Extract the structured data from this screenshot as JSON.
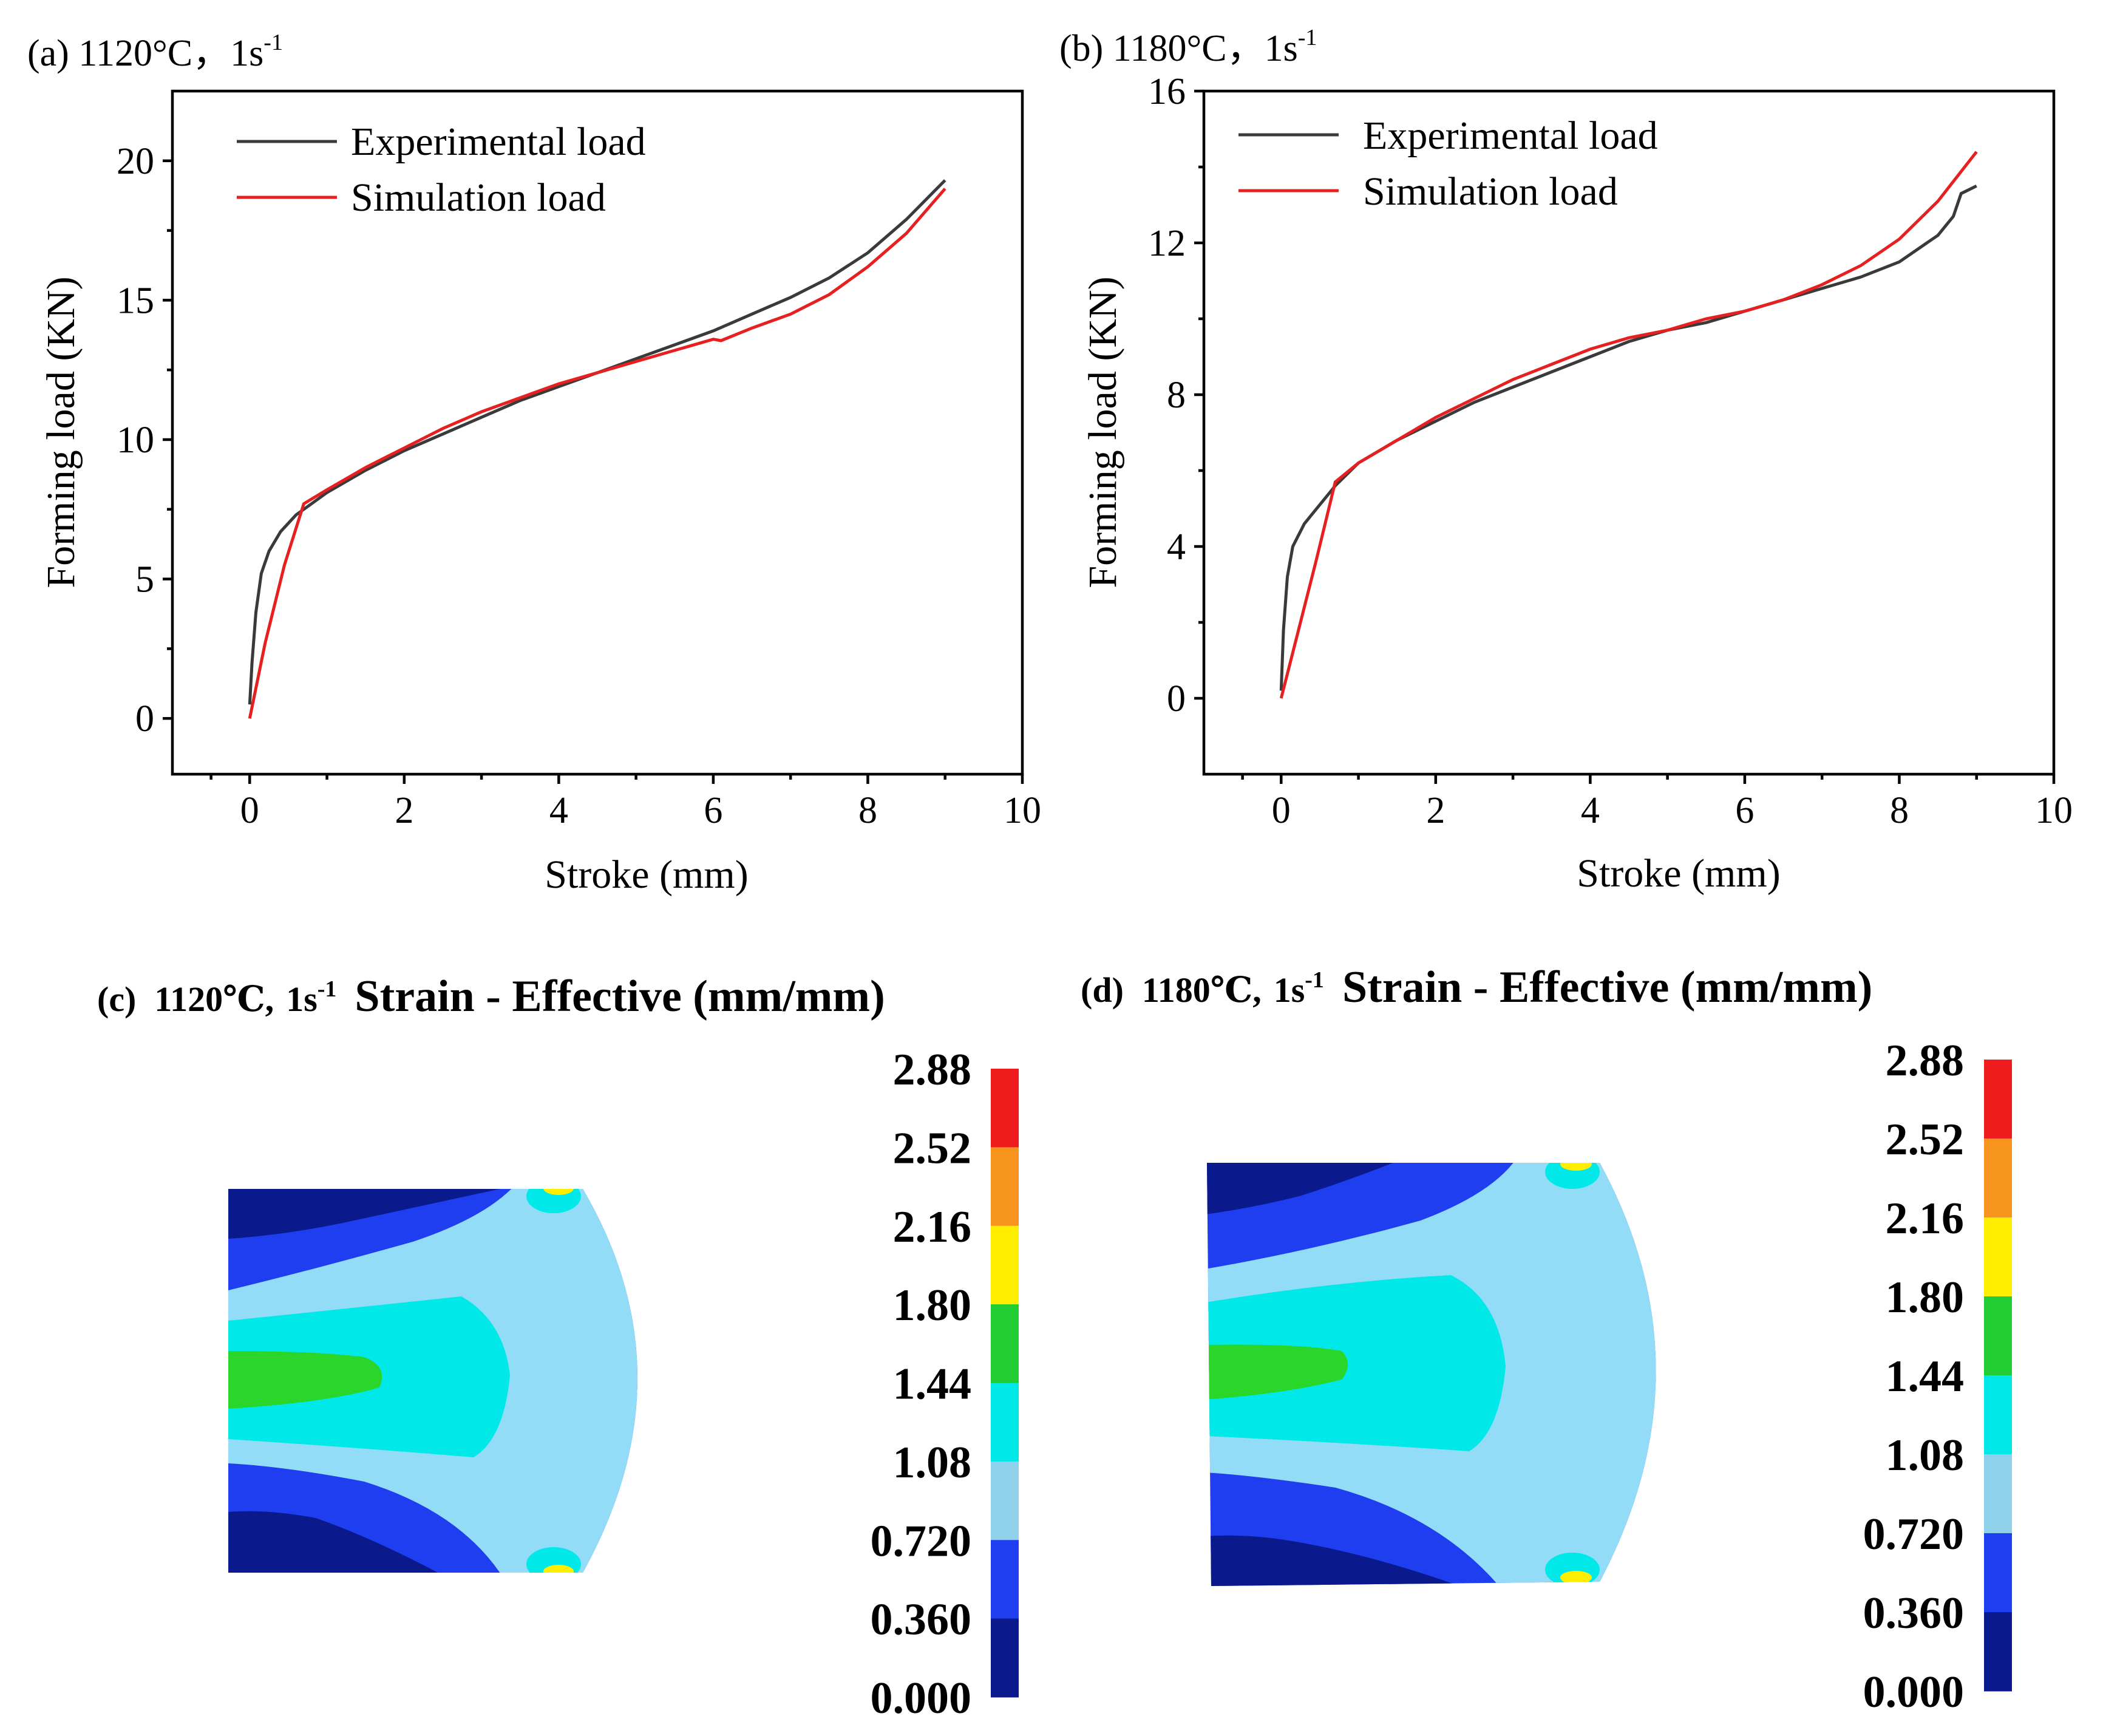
{
  "panels": [
    {
      "id": "a",
      "label": "(a) 1120°C，1s",
      "label_sup": "-1",
      "xlabel": "Stroke (mm)",
      "ylabel": "Forming load (KN)",
      "xlim": [
        -1,
        10
      ],
      "ylim": [
        -2,
        22.5
      ],
      "xticks": [
        0,
        2,
        4,
        6,
        8,
        10
      ],
      "yticks": [
        0,
        5,
        10,
        15,
        20
      ],
      "legend": [
        "Experimental load",
        "Simulation load"
      ]
    },
    {
      "id": "b",
      "label": "(b) 1180°C，1s",
      "label_sup": "-1",
      "xlabel": "Stroke (mm)",
      "ylabel": "Forming load (KN)",
      "xlim": [
        -1,
        10
      ],
      "ylim": [
        -2,
        16
      ],
      "xticks": [
        0,
        2,
        4,
        6,
        8,
        10
      ],
      "yticks": [
        0,
        4,
        8,
        12,
        16
      ],
      "legend": [
        "Experimental load",
        "Simulation load"
      ]
    }
  ],
  "contours": [
    {
      "id": "c",
      "prefix": "(c)",
      "condition": "1120℃,",
      "rate": "1s",
      "rate_sup": "-1",
      "title": "Strain - Effective (mm/mm)"
    },
    {
      "id": "d",
      "prefix": "(d)",
      "condition": "1180℃,",
      "rate": "1s",
      "rate_sup": "-1",
      "title": "Strain - Effective (mm/mm)"
    }
  ],
  "colorbar": {
    "labels": [
      "2.88",
      "2.52",
      "2.16",
      "1.80",
      "1.44",
      "1.08",
      "0.720",
      "0.360",
      "0.000"
    ],
    "colors": [
      "#ee1c1c",
      "#f7941d",
      "#ffee00",
      "#22cc33",
      "#00e8e8",
      "#8fd1ea",
      "#1f3ef0",
      "#0a1a8c"
    ]
  },
  "colors": {
    "experimental": "#3a3a3a",
    "simulation": "#e62020",
    "navy": "#0a1a8c",
    "blue": "#1f3ef0",
    "lightblue": "#93dcf7",
    "cyan": "#00e8e8",
    "green": "#2bd62b",
    "yellow": "#ffee00"
  },
  "chart_data": [
    {
      "type": "line",
      "title": "(a) 1120°C，1s-1",
      "xlabel": "Stroke (mm)",
      "ylabel": "Forming load (KN)",
      "xlim": [
        -1,
        10
      ],
      "ylim": [
        -2,
        22.5
      ],
      "series": [
        {
          "name": "Experimental load",
          "x": [
            0,
            0.03,
            0.08,
            0.15,
            0.25,
            0.4,
            0.6,
            0.8,
            1.0,
            1.5,
            2.0,
            2.5,
            3.0,
            3.5,
            4.0,
            4.5,
            5.0,
            5.5,
            6.0,
            6.5,
            7.0,
            7.5,
            8.0,
            8.5,
            9.0
          ],
          "y": [
            0.5,
            2.0,
            3.8,
            5.2,
            6.0,
            6.7,
            7.3,
            7.7,
            8.1,
            8.9,
            9.6,
            10.2,
            10.8,
            11.4,
            11.9,
            12.4,
            12.9,
            13.4,
            13.9,
            14.5,
            15.1,
            15.8,
            16.7,
            17.9,
            19.3
          ]
        },
        {
          "name": "Simulation load",
          "x": [
            0,
            0.2,
            0.45,
            0.7,
            1.0,
            1.5,
            2.0,
            2.5,
            3.0,
            3.5,
            4.0,
            4.5,
            5.0,
            5.5,
            6.0,
            6.1,
            6.5,
            7.0,
            7.5,
            8.0,
            8.5,
            9.0
          ],
          "y": [
            0,
            2.7,
            5.5,
            7.7,
            8.2,
            9.0,
            9.7,
            10.4,
            11.0,
            11.5,
            12.0,
            12.4,
            12.8,
            13.2,
            13.6,
            13.55,
            14.0,
            14.5,
            15.2,
            16.2,
            17.4,
            19.0
          ]
        }
      ]
    },
    {
      "type": "line",
      "title": "(b) 1180°C，1s-1",
      "xlabel": "Stroke (mm)",
      "ylabel": "Forming load (KN)",
      "xlim": [
        -1,
        10
      ],
      "ylim": [
        -2,
        16
      ],
      "series": [
        {
          "name": "Experimental load",
          "x": [
            0,
            0.03,
            0.08,
            0.15,
            0.3,
            0.5,
            0.7,
            1.0,
            1.5,
            2.0,
            2.5,
            3.0,
            3.5,
            4.0,
            4.5,
            5.0,
            5.5,
            6.0,
            6.5,
            7.0,
            7.5,
            8.0,
            8.5,
            8.7,
            8.8,
            9.0
          ],
          "y": [
            0.2,
            1.8,
            3.2,
            4.0,
            4.6,
            5.1,
            5.6,
            6.2,
            6.8,
            7.3,
            7.8,
            8.2,
            8.6,
            9.0,
            9.4,
            9.7,
            9.9,
            10.2,
            10.5,
            10.8,
            11.1,
            11.5,
            12.2,
            12.7,
            13.3,
            13.5
          ]
        },
        {
          "name": "Simulation load",
          "x": [
            0,
            0.2,
            0.45,
            0.7,
            1.0,
            1.5,
            2.0,
            2.5,
            3.0,
            3.5,
            4.0,
            4.5,
            5.0,
            5.5,
            6.0,
            6.5,
            7.0,
            7.5,
            8.0,
            8.5,
            9.0
          ],
          "y": [
            0,
            1.6,
            3.6,
            5.7,
            6.2,
            6.8,
            7.4,
            7.9,
            8.4,
            8.8,
            9.2,
            9.5,
            9.7,
            10.0,
            10.2,
            10.5,
            10.9,
            11.4,
            12.1,
            13.1,
            14.4
          ]
        }
      ]
    }
  ]
}
